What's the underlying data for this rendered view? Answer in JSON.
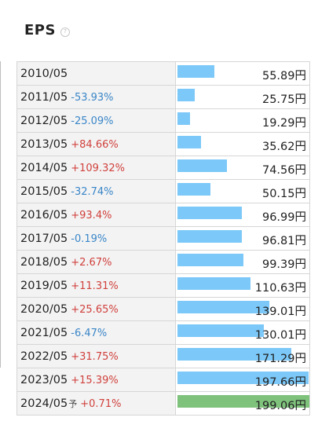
{
  "header": {
    "title": "EPS",
    "help_icon": "question-circle-icon"
  },
  "colors": {
    "bar_actual": "#7cc8f8",
    "bar_forecast": "#7fc27c",
    "up": "#d0413d",
    "down": "#3a86c8"
  },
  "unit": "円",
  "rows": [
    {
      "year": "2010/05",
      "change": "",
      "value": "55.89",
      "eps": 55.89,
      "forecast": false
    },
    {
      "year": "2011/05",
      "change": "-53.93%",
      "value": "25.75",
      "eps": 25.75,
      "forecast": false
    },
    {
      "year": "2012/05",
      "change": "-25.09%",
      "value": "19.29",
      "eps": 19.29,
      "forecast": false
    },
    {
      "year": "2013/05",
      "change": "+84.66%",
      "value": "35.62",
      "eps": 35.62,
      "forecast": false
    },
    {
      "year": "2014/05",
      "change": "+109.32%",
      "value": "74.56",
      "eps": 74.56,
      "forecast": false
    },
    {
      "year": "2015/05",
      "change": "-32.74%",
      "value": "50.15",
      "eps": 50.15,
      "forecast": false
    },
    {
      "year": "2016/05",
      "change": "+93.4%",
      "value": "96.99",
      "eps": 96.99,
      "forecast": false
    },
    {
      "year": "2017/05",
      "change": "-0.19%",
      "value": "96.81",
      "eps": 96.81,
      "forecast": false
    },
    {
      "year": "2018/05",
      "change": "+2.67%",
      "value": "99.39",
      "eps": 99.39,
      "forecast": false
    },
    {
      "year": "2019/05",
      "change": "+11.31%",
      "value": "110.63",
      "eps": 110.63,
      "forecast": false
    },
    {
      "year": "2020/05",
      "change": "+25.65%",
      "value": "139.01",
      "eps": 139.01,
      "forecast": false
    },
    {
      "year": "2021/05",
      "change": "-6.47%",
      "value": "130.01",
      "eps": 130.01,
      "forecast": false
    },
    {
      "year": "2022/05",
      "change": "+31.75%",
      "value": "171.29",
      "eps": 171.29,
      "forecast": false
    },
    {
      "year": "2023/05",
      "change": "+15.39%",
      "value": "197.66",
      "eps": 197.66,
      "forecast": false
    },
    {
      "year": "2024/05",
      "forecast_label": "予",
      "change": "+0.71%",
      "value": "199.06",
      "eps": 199.06,
      "forecast": true
    }
  ]
}
